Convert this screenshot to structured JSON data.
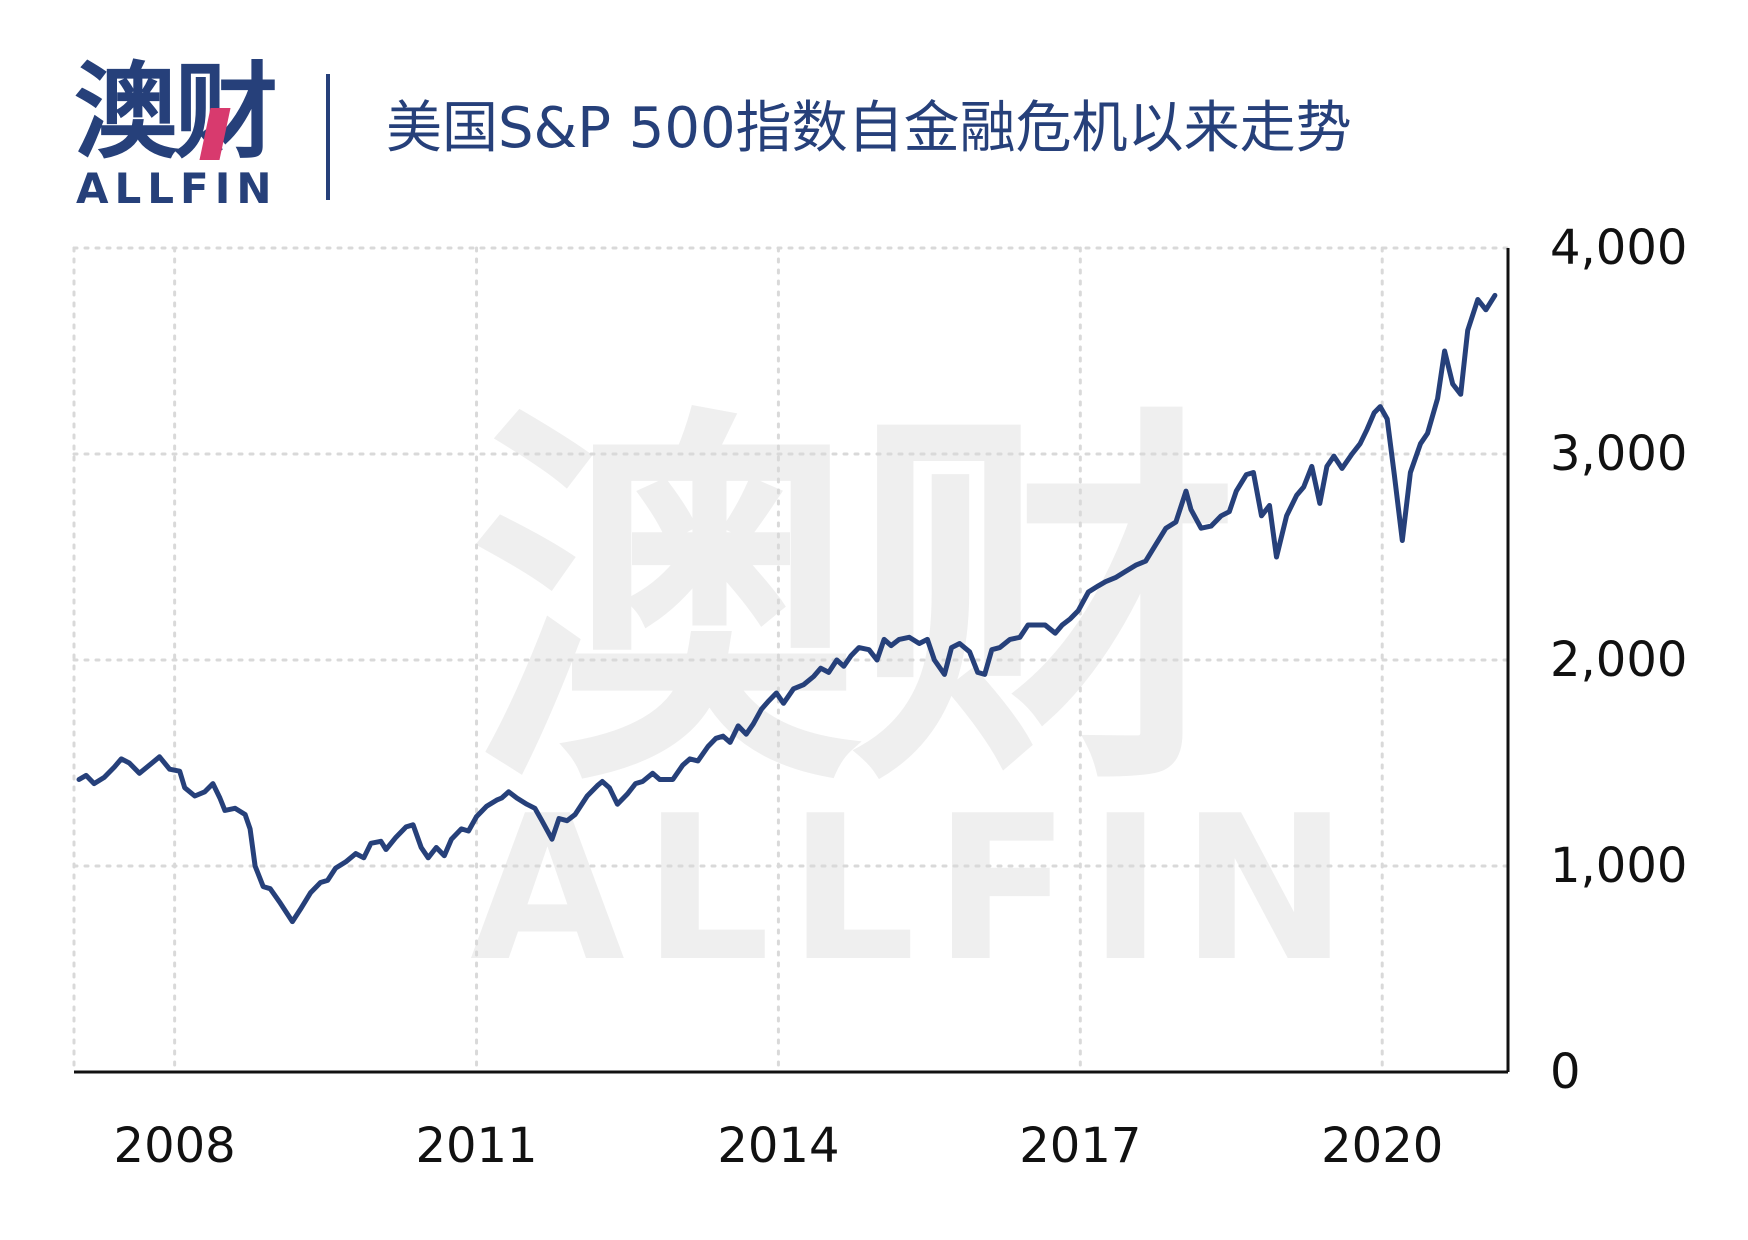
{
  "header": {
    "logo_cn": "澳财",
    "logo_en": "ALLFIN",
    "title": "美国S&P 500指数自金融危机以来走势"
  },
  "watermark": {
    "cn": "澳财",
    "en": "ALLFIN"
  },
  "colors": {
    "brand": "#26407a",
    "accent": "#d83a6e",
    "line": "#26407a",
    "grid": "#d9d9d9"
  },
  "chart_data": {
    "type": "line",
    "title": "美国S&P 500指数自金融危机以来走势",
    "xlabel": "",
    "ylabel": "",
    "xlim": [
      2007.0,
      2021.25
    ],
    "ylim": [
      0,
      4000
    ],
    "y_ticks": [
      0,
      1000,
      2000,
      3000,
      4000
    ],
    "y_tick_labels": [
      "0",
      "1,000",
      "2,000",
      "3,000",
      "4,000"
    ],
    "x_ticks": [
      2008,
      2011,
      2014,
      2017,
      2020
    ],
    "x_tick_labels": [
      "2008",
      "2011",
      "2014",
      "2017",
      "2020"
    ],
    "grid": true,
    "legend": "none",
    "series": [
      {
        "values": [
          [
            2007.05,
            1420
          ],
          [
            2007.12,
            1440
          ],
          [
            2007.2,
            1400
          ],
          [
            2007.3,
            1430
          ],
          [
            2007.4,
            1480
          ],
          [
            2007.47,
            1520
          ],
          [
            2007.55,
            1500
          ],
          [
            2007.65,
            1450
          ],
          [
            2007.75,
            1490
          ],
          [
            2007.85,
            1530
          ],
          [
            2007.95,
            1470
          ],
          [
            2008.05,
            1460
          ],
          [
            2008.1,
            1380
          ],
          [
            2008.2,
            1340
          ],
          [
            2008.3,
            1360
          ],
          [
            2008.38,
            1400
          ],
          [
            2008.45,
            1330
          ],
          [
            2008.5,
            1270
          ],
          [
            2008.6,
            1280
          ],
          [
            2008.7,
            1250
          ],
          [
            2008.75,
            1180
          ],
          [
            2008.8,
            1000
          ],
          [
            2008.88,
            900
          ],
          [
            2008.95,
            890
          ],
          [
            2009.05,
            820
          ],
          [
            2009.17,
            730
          ],
          [
            2009.25,
            790
          ],
          [
            2009.35,
            870
          ],
          [
            2009.45,
            920
          ],
          [
            2009.52,
            930
          ],
          [
            2009.6,
            990
          ],
          [
            2009.7,
            1020
          ],
          [
            2009.8,
            1060
          ],
          [
            2009.88,
            1040
          ],
          [
            2009.95,
            1110
          ],
          [
            2010.05,
            1120
          ],
          [
            2010.1,
            1080
          ],
          [
            2010.2,
            1140
          ],
          [
            2010.3,
            1190
          ],
          [
            2010.37,
            1200
          ],
          [
            2010.45,
            1090
          ],
          [
            2010.52,
            1040
          ],
          [
            2010.6,
            1090
          ],
          [
            2010.68,
            1050
          ],
          [
            2010.75,
            1130
          ],
          [
            2010.85,
            1180
          ],
          [
            2010.92,
            1170
          ],
          [
            2011.0,
            1240
          ],
          [
            2011.1,
            1290
          ],
          [
            2011.2,
            1320
          ],
          [
            2011.25,
            1330
          ],
          [
            2011.32,
            1360
          ],
          [
            2011.4,
            1330
          ],
          [
            2011.5,
            1300
          ],
          [
            2011.58,
            1280
          ],
          [
            2011.65,
            1220
          ],
          [
            2011.75,
            1130
          ],
          [
            2011.82,
            1230
          ],
          [
            2011.9,
            1220
          ],
          [
            2011.98,
            1250
          ],
          [
            2012.1,
            1340
          ],
          [
            2012.2,
            1390
          ],
          [
            2012.25,
            1410
          ],
          [
            2012.32,
            1380
          ],
          [
            2012.4,
            1300
          ],
          [
            2012.5,
            1350
          ],
          [
            2012.58,
            1400
          ],
          [
            2012.65,
            1410
          ],
          [
            2012.75,
            1450
          ],
          [
            2012.82,
            1420
          ],
          [
            2012.95,
            1420
          ],
          [
            2013.05,
            1490
          ],
          [
            2013.12,
            1520
          ],
          [
            2013.2,
            1510
          ],
          [
            2013.3,
            1580
          ],
          [
            2013.38,
            1620
          ],
          [
            2013.45,
            1630
          ],
          [
            2013.52,
            1600
          ],
          [
            2013.6,
            1680
          ],
          [
            2013.68,
            1640
          ],
          [
            2013.75,
            1690
          ],
          [
            2013.83,
            1760
          ],
          [
            2013.9,
            1800
          ],
          [
            2013.98,
            1840
          ],
          [
            2014.05,
            1790
          ],
          [
            2014.15,
            1860
          ],
          [
            2014.25,
            1880
          ],
          [
            2014.35,
            1920
          ],
          [
            2014.42,
            1960
          ],
          [
            2014.5,
            1940
          ],
          [
            2014.58,
            2000
          ],
          [
            2014.65,
            1970
          ],
          [
            2014.72,
            2020
          ],
          [
            2014.8,
            2060
          ],
          [
            2014.9,
            2050
          ],
          [
            2014.98,
            2000
          ],
          [
            2015.05,
            2100
          ],
          [
            2015.12,
            2070
          ],
          [
            2015.2,
            2100
          ],
          [
            2015.3,
            2110
          ],
          [
            2015.4,
            2080
          ],
          [
            2015.48,
            2100
          ],
          [
            2015.55,
            2000
          ],
          [
            2015.65,
            1930
          ],
          [
            2015.72,
            2060
          ],
          [
            2015.8,
            2080
          ],
          [
            2015.9,
            2040
          ],
          [
            2015.98,
            1940
          ],
          [
            2016.05,
            1930
          ],
          [
            2016.12,
            2050
          ],
          [
            2016.2,
            2060
          ],
          [
            2016.3,
            2100
          ],
          [
            2016.4,
            2110
          ],
          [
            2016.48,
            2170
          ],
          [
            2016.55,
            2170
          ],
          [
            2016.65,
            2170
          ],
          [
            2016.75,
            2130
          ],
          [
            2016.82,
            2170
          ],
          [
            2016.9,
            2200
          ],
          [
            2016.98,
            2240
          ],
          [
            2017.08,
            2330
          ],
          [
            2017.18,
            2360
          ],
          [
            2017.25,
            2380
          ],
          [
            2017.35,
            2400
          ],
          [
            2017.45,
            2430
          ],
          [
            2017.55,
            2460
          ],
          [
            2017.65,
            2480
          ],
          [
            2017.75,
            2560
          ],
          [
            2017.85,
            2640
          ],
          [
            2017.95,
            2670
          ],
          [
            2018.05,
            2820
          ],
          [
            2018.1,
            2730
          ],
          [
            2018.2,
            2640
          ],
          [
            2018.3,
            2650
          ],
          [
            2018.4,
            2700
          ],
          [
            2018.48,
            2720
          ],
          [
            2018.55,
            2820
          ],
          [
            2018.65,
            2900
          ],
          [
            2018.72,
            2910
          ],
          [
            2018.8,
            2700
          ],
          [
            2018.88,
            2750
          ],
          [
            2018.95,
            2500
          ],
          [
            2019.05,
            2700
          ],
          [
            2019.15,
            2800
          ],
          [
            2019.22,
            2840
          ],
          [
            2019.3,
            2940
          ],
          [
            2019.38,
            2760
          ],
          [
            2019.45,
            2940
          ],
          [
            2019.52,
            2990
          ],
          [
            2019.6,
            2930
          ],
          [
            2019.7,
            3000
          ],
          [
            2019.78,
            3050
          ],
          [
            2019.85,
            3120
          ],
          [
            2019.92,
            3200
          ],
          [
            2019.98,
            3230
          ],
          [
            2020.05,
            3170
          ],
          [
            2020.12,
            2900
          ],
          [
            2020.2,
            2580
          ],
          [
            2020.28,
            2910
          ],
          [
            2020.38,
            3050
          ],
          [
            2020.45,
            3100
          ],
          [
            2020.55,
            3270
          ],
          [
            2020.62,
            3500
          ],
          [
            2020.7,
            3340
          ],
          [
            2020.78,
            3290
          ],
          [
            2020.85,
            3600
          ],
          [
            2020.95,
            3750
          ],
          [
            2021.03,
            3700
          ],
          [
            2021.12,
            3770
          ]
        ]
      }
    ]
  }
}
